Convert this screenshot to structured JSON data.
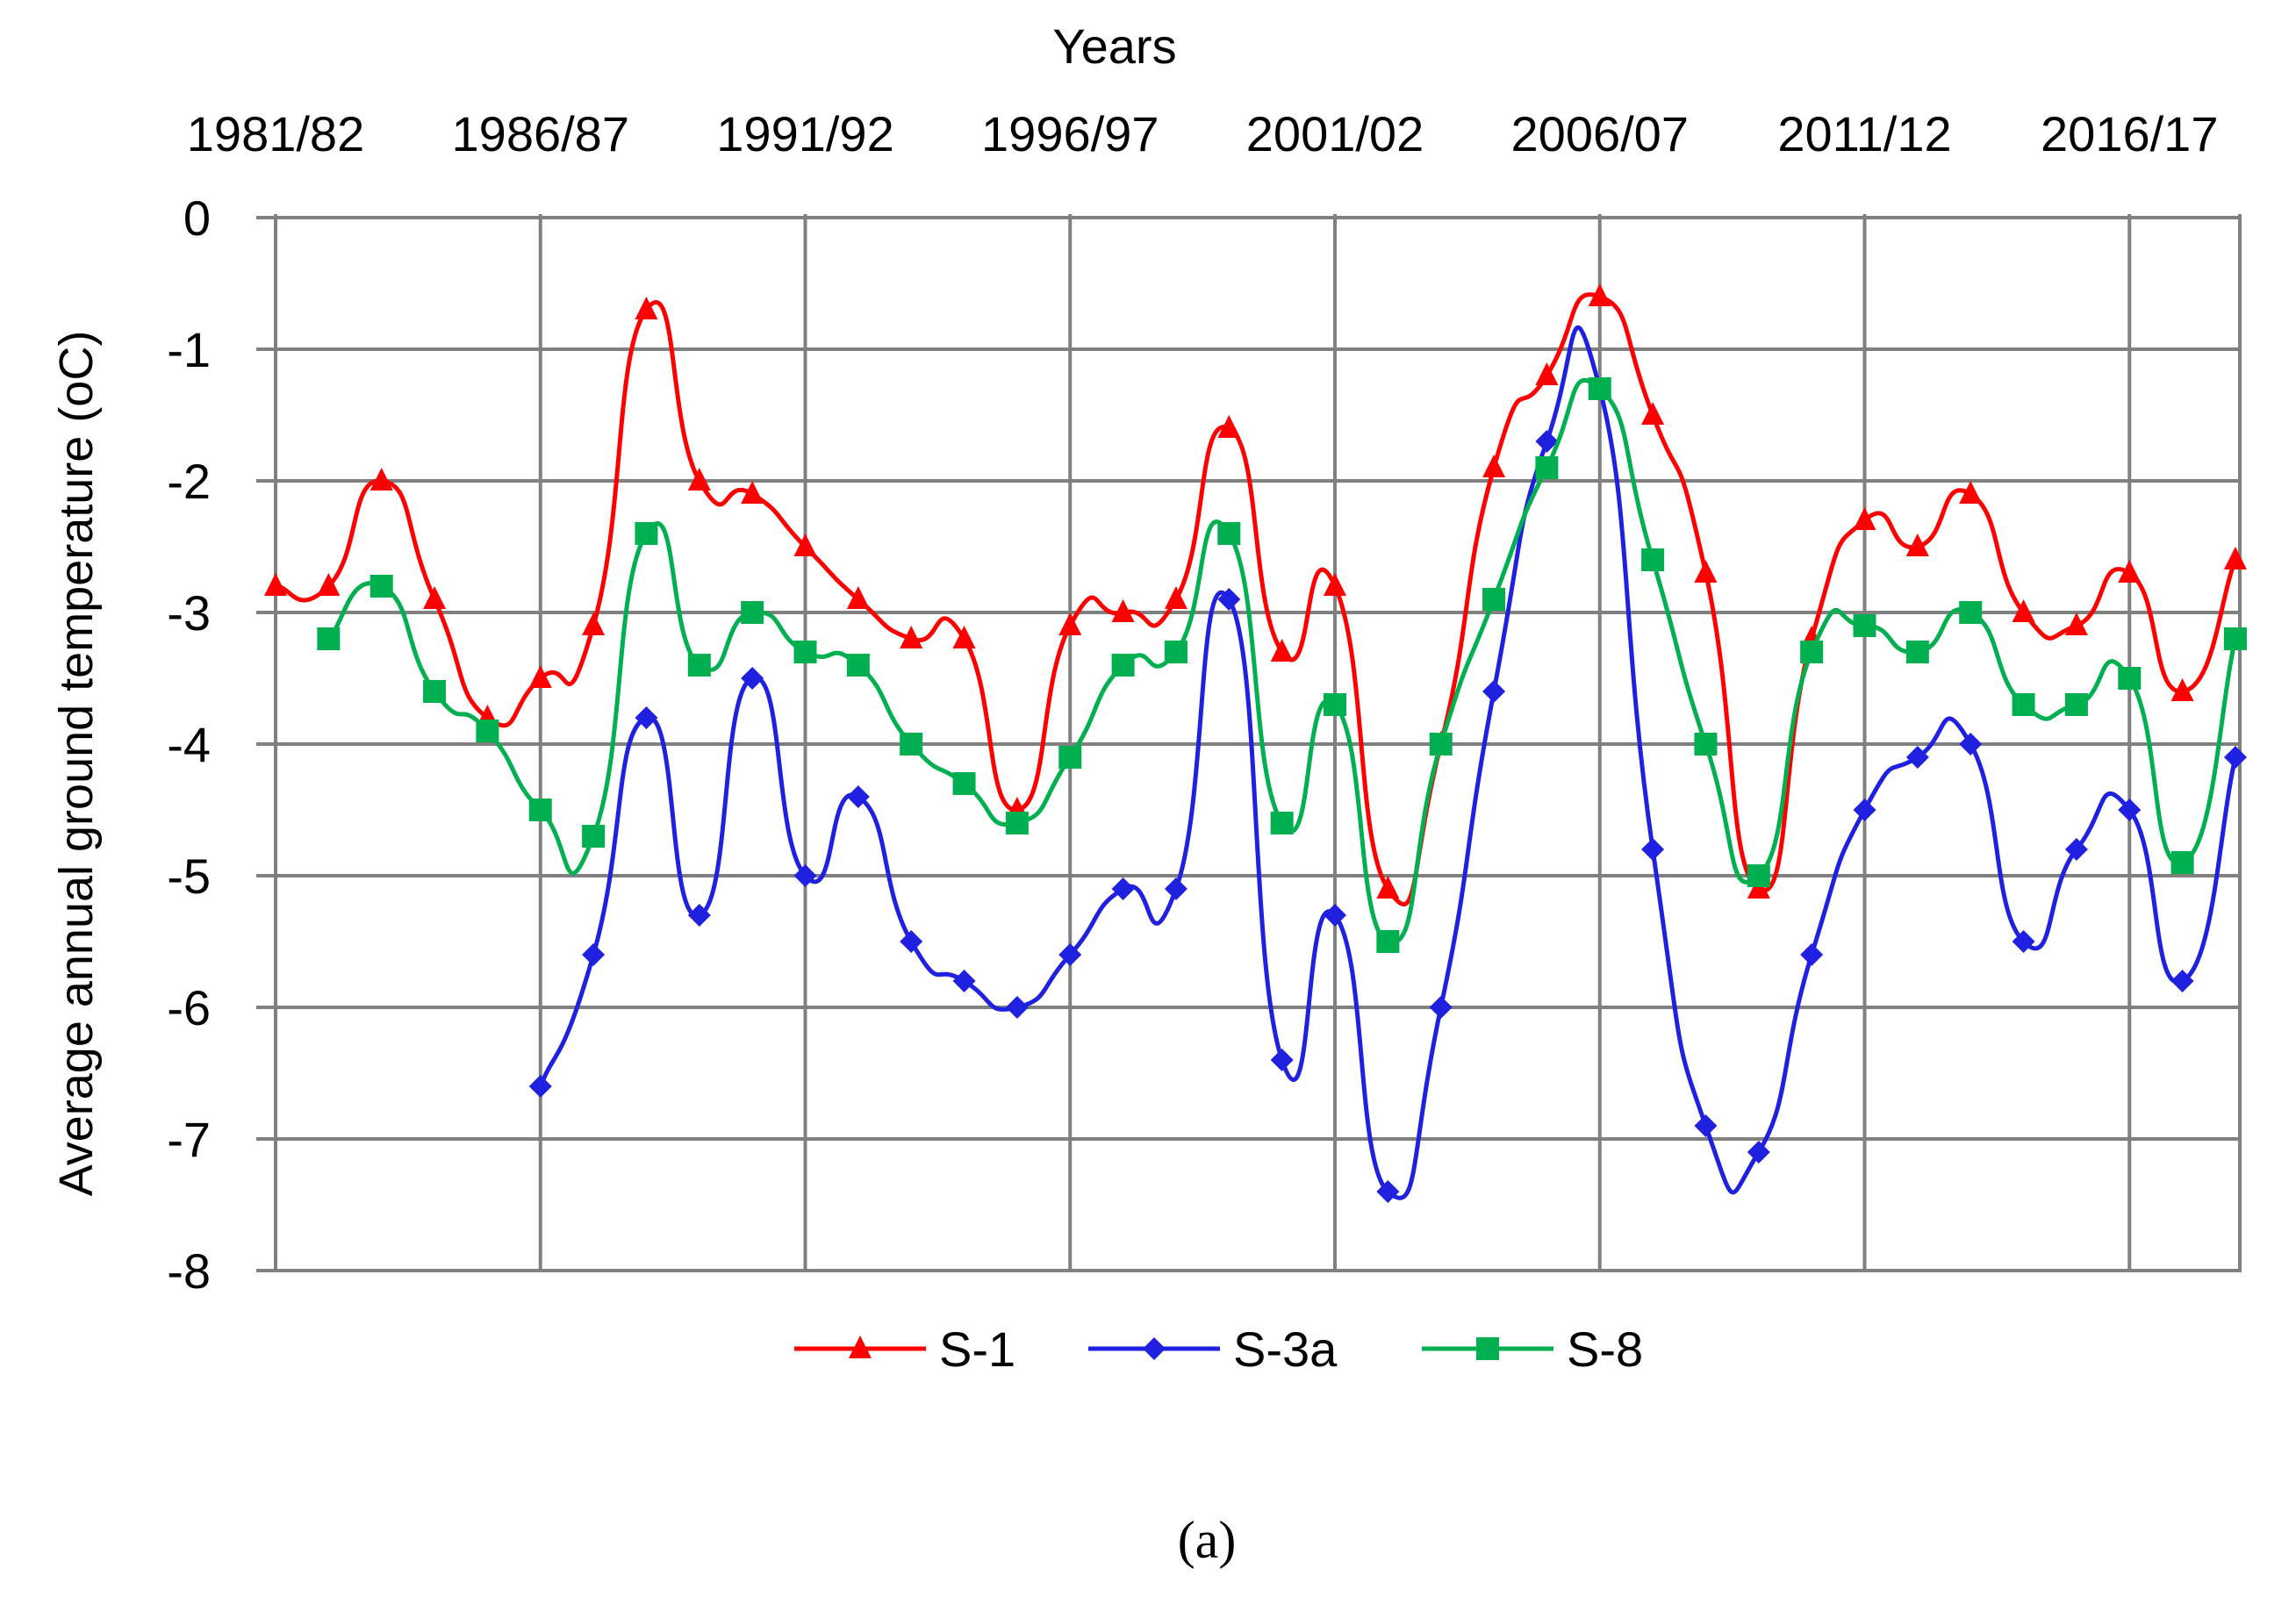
{
  "chart_data": {
    "type": "line",
    "xlabel": "Years",
    "ylabel": "Average annual ground temperature (oC)",
    "caption": "(a)",
    "x_tick_labels": [
      "1981/82",
      "1986/87",
      "1991/92",
      "1996/97",
      "2001/02",
      "2006/07",
      "2011/12",
      "2016/17"
    ],
    "y_tick_labels": [
      "0",
      "-1",
      "-2",
      "-3",
      "-4",
      "-5",
      "-6",
      "-7",
      "-8"
    ],
    "ylim": [
      -8,
      0
    ],
    "x_axis_position": "top",
    "grid": true,
    "legend_position": "bottom",
    "x": [
      "1981/82",
      "1982/83",
      "1983/84",
      "1984/85",
      "1985/86",
      "1986/87",
      "1987/88",
      "1988/89",
      "1989/90",
      "1990/91",
      "1991/92",
      "1992/93",
      "1993/94",
      "1994/95",
      "1995/96",
      "1996/97",
      "1997/98",
      "1998/99",
      "1999/00",
      "2000/01",
      "2001/02",
      "2002/03",
      "2003/04",
      "2004/05",
      "2005/06",
      "2006/07",
      "2007/08",
      "2008/09",
      "2009/10",
      "2010/11",
      "2011/12",
      "2012/13",
      "2013/14",
      "2014/15",
      "2015/16",
      "2016/17",
      "2017/18",
      "2018/19"
    ],
    "series": [
      {
        "name": "S-1",
        "color": "#ff0000",
        "marker": "triangle",
        "values": [
          -2.8,
          -2.8,
          -2.0,
          -2.9,
          -3.8,
          -3.5,
          -3.1,
          -0.7,
          -2.0,
          -2.1,
          -2.5,
          -2.9,
          -3.2,
          -3.2,
          -4.5,
          -3.1,
          -3.0,
          -2.9,
          -1.6,
          -3.3,
          -2.8,
          -5.1,
          -4.0,
          -1.9,
          -1.2,
          -0.6,
          -1.5,
          -2.7,
          -5.1,
          -3.2,
          -2.3,
          -2.5,
          -2.1,
          -3.0,
          -3.1,
          -2.7,
          -3.6,
          -2.6
        ]
      },
      {
        "name": "S-3a",
        "color": "#2020e0",
        "marker": "diamond",
        "values": [
          null,
          null,
          null,
          null,
          null,
          -6.6,
          -5.6,
          -3.8,
          -5.3,
          -3.5,
          -5.0,
          -4.4,
          -5.5,
          -5.8,
          -6.0,
          -5.6,
          -5.1,
          -5.1,
          -2.9,
          -6.4,
          -5.3,
          -7.4,
          -6.0,
          -3.6,
          -1.7,
          -1.3,
          -4.8,
          -6.9,
          -7.1,
          -5.6,
          -4.5,
          -4.1,
          -4.0,
          -5.5,
          -4.8,
          -4.5,
          -5.8,
          -4.1
        ]
      },
      {
        "name": "S-8",
        "color": "#00b050",
        "marker": "square",
        "values": [
          null,
          -3.2,
          -2.8,
          -3.6,
          -3.9,
          -4.5,
          -4.7,
          -2.4,
          -3.4,
          -3.0,
          -3.3,
          -3.4,
          -4.0,
          -4.3,
          -4.6,
          -4.1,
          -3.4,
          -3.3,
          -2.4,
          -4.6,
          -3.7,
          -5.5,
          -4.0,
          -2.9,
          -1.9,
          -1.3,
          -2.6,
          -4.0,
          -5.0,
          -3.3,
          -3.1,
          -3.3,
          -3.0,
          -3.7,
          -3.7,
          -3.5,
          -4.9,
          -3.2
        ]
      }
    ]
  }
}
